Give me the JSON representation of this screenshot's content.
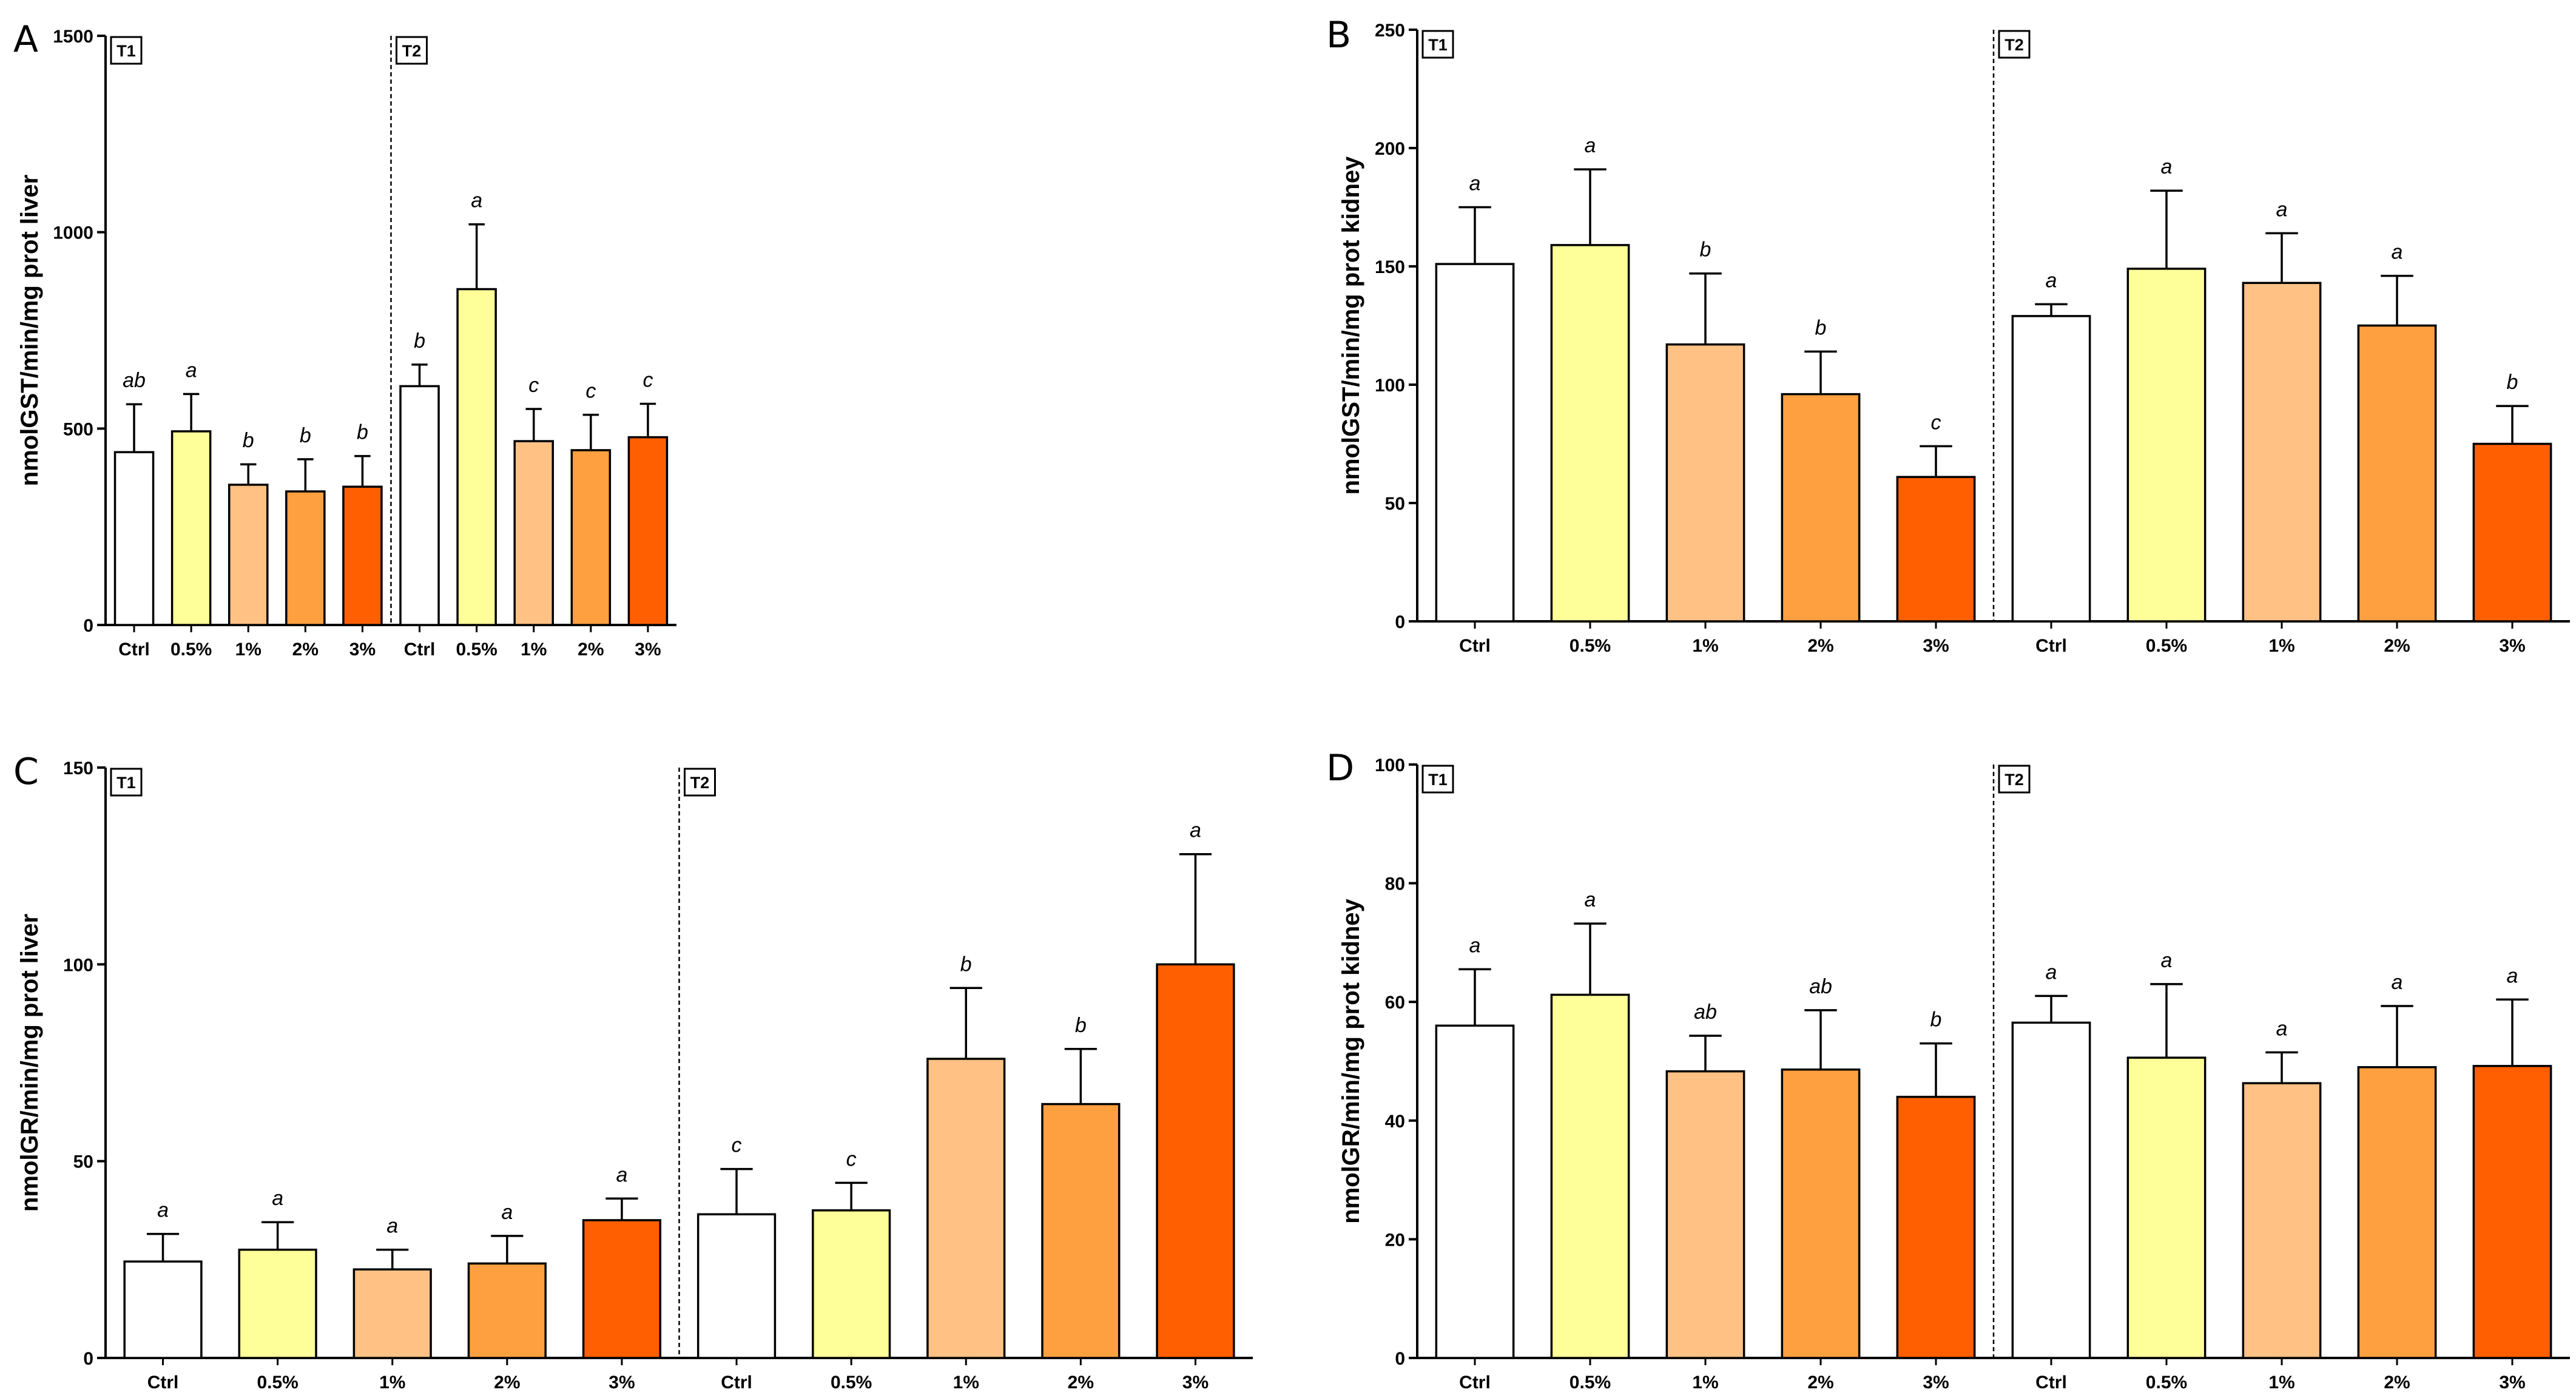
{
  "figure": {
    "colors": {
      "Ctrl": "#ffffff",
      "0.5%": "#ffff99",
      "1%": "#ffc184",
      "2%": "#ffa040",
      "3%": "#ff5f00",
      "outline": "#000000"
    }
  },
  "chart_data": [
    {
      "panel": "A",
      "type": "bar",
      "ylabel": "nmolGST/min/mg prot liver",
      "ylim": [
        0,
        1500
      ],
      "yticks": [
        0,
        500,
        1000,
        1500
      ],
      "categories": [
        "Ctrl",
        "0.5%",
        "1%",
        "2%",
        "3%",
        "Ctrl",
        "0.5%",
        "1%",
        "2%",
        "3%"
      ],
      "groups": [
        "T1",
        "T2"
      ],
      "values": [
        440,
        493,
        357,
        340,
        352,
        608,
        855,
        468,
        445,
        478
      ],
      "errors": [
        122,
        95,
        52,
        82,
        78,
        55,
        165,
        82,
        90,
        85
      ],
      "significance": [
        "ab",
        "a",
        "b",
        "b",
        "b",
        "b",
        "a",
        "c",
        "c",
        "c"
      ]
    },
    {
      "panel": "B",
      "type": "bar",
      "ylabel": "nmolGST/min/mg prot kidney",
      "ylim": [
        0,
        250
      ],
      "yticks": [
        0,
        50,
        100,
        150,
        200,
        250
      ],
      "categories": [
        "Ctrl",
        "0.5%",
        "1%",
        "2%",
        "3%",
        "Ctrl",
        "0.5%",
        "1%",
        "2%",
        "3%"
      ],
      "groups": [
        "T1",
        "T2"
      ],
      "values": [
        151,
        159,
        117,
        96,
        61,
        129,
        149,
        143,
        125,
        75
      ],
      "errors": [
        24,
        32,
        30,
        18,
        13,
        5,
        33,
        21,
        21,
        16
      ],
      "significance": [
        "a",
        "a",
        "b",
        "b",
        "c",
        "a",
        "a",
        "a",
        "a",
        "b"
      ]
    },
    {
      "panel": "C",
      "type": "bar",
      "ylabel": "nmolGR/min/mg prot liver",
      "ylim": [
        0,
        150
      ],
      "yticks": [
        0,
        50,
        100,
        150
      ],
      "categories": [
        "Ctrl",
        "0.5%",
        "1%",
        "2%",
        "3%",
        "Ctrl",
        "0.5%",
        "1%",
        "2%",
        "3%"
      ],
      "groups": [
        "T1",
        "T2"
      ],
      "values": [
        24.5,
        27.5,
        22.5,
        24,
        35,
        36.5,
        37.5,
        76,
        64.5,
        100
      ],
      "errors": [
        7,
        7,
        5,
        7,
        5.5,
        11.5,
        7,
        18,
        14,
        28
      ],
      "significance": [
        "a",
        "a",
        "a",
        "a",
        "a",
        "c",
        "c",
        "b",
        "b",
        "a"
      ]
    },
    {
      "panel": "D",
      "type": "bar",
      "ylabel": "nmolGR/min/mg prot kidney",
      "ylim": [
        0,
        100
      ],
      "yticks": [
        0,
        20,
        40,
        60,
        80,
        100
      ],
      "categories": [
        "Ctrl",
        "0.5%",
        "1%",
        "2%",
        "3%",
        "Ctrl",
        "0.5%",
        "1%",
        "2%",
        "3%"
      ],
      "groups": [
        "T1",
        "T2"
      ],
      "values": [
        56,
        61.2,
        48.3,
        48.6,
        44,
        56.5,
        50.6,
        46.3,
        49,
        49.2
      ],
      "errors": [
        9.5,
        12,
        6,
        10,
        9,
        4.5,
        12.4,
        5.2,
        10.3,
        11.2
      ],
      "significance": [
        "a",
        "a",
        "ab",
        "ab",
        "b",
        "a",
        "a",
        "a",
        "a",
        "a"
      ]
    }
  ]
}
